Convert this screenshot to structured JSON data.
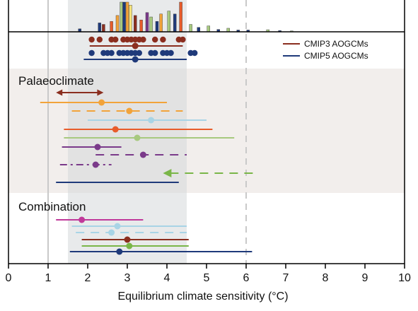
{
  "chart_data": {
    "type": "scatter",
    "xlabel": "Equilibrium climate sensitivity (°C)",
    "xlim": [
      0,
      10
    ],
    "xticks": [
      0,
      1,
      2,
      3,
      4,
      5,
      6,
      7,
      8,
      9,
      10
    ],
    "likely_range": [
      1.5,
      4.5
    ],
    "reference_lines": [
      1,
      6
    ],
    "legend": {
      "placement": "top-right",
      "entries": [
        {
          "label": "CMIP3 AOGCMs",
          "color": "#8b2e1f"
        },
        {
          "label": "CMIP5 AOGCMs",
          "color": "#1f3a7a"
        }
      ]
    },
    "sections": [
      {
        "label": "Palaeoclimate"
      },
      {
        "label": "Combination"
      }
    ],
    "histogram": {
      "note": "instrumental-estimate PDF bars (truncated at top)",
      "bins": [
        {
          "x": 1.8,
          "h": 0.1,
          "c": "#1f3a7a"
        },
        {
          "x": 2.3,
          "h": 0.3,
          "c": "#1f3a7a"
        },
        {
          "x": 2.4,
          "h": 0.25,
          "c": "#8b2e1f"
        },
        {
          "x": 2.6,
          "h": 0.35,
          "c": "#e85c2b"
        },
        {
          "x": 2.75,
          "h": 0.55,
          "c": "#f2a33a"
        },
        {
          "x": 2.85,
          "h": 1.0,
          "c": "#a7c97f"
        },
        {
          "x": 2.92,
          "h": 1.0,
          "c": "#1f3a7a"
        },
        {
          "x": 3.0,
          "h": 1.0,
          "c": "#f2a33a"
        },
        {
          "x": 3.08,
          "h": 0.9,
          "c": "#f5e27a"
        },
        {
          "x": 3.2,
          "h": 0.55,
          "c": "#8b2e1f"
        },
        {
          "x": 3.35,
          "h": 0.4,
          "c": "#e85c2b"
        },
        {
          "x": 3.5,
          "h": 0.65,
          "c": "#7a3a8a"
        },
        {
          "x": 3.6,
          "h": 0.5,
          "c": "#a7c97f"
        },
        {
          "x": 3.75,
          "h": 0.35,
          "c": "#1f3a7a"
        },
        {
          "x": 3.85,
          "h": 0.6,
          "c": "#f2a33a"
        },
        {
          "x": 4.05,
          "h": 0.7,
          "c": "#a7c97f"
        },
        {
          "x": 4.2,
          "h": 0.6,
          "c": "#1f3a7a"
        },
        {
          "x": 4.35,
          "h": 1.0,
          "c": "#e85c2b"
        },
        {
          "x": 4.6,
          "h": 0.25,
          "c": "#a7c97f"
        },
        {
          "x": 4.8,
          "h": 0.15,
          "c": "#1f3a7a"
        },
        {
          "x": 5.05,
          "h": 0.2,
          "c": "#a7c97f"
        },
        {
          "x": 5.3,
          "h": 0.08,
          "c": "#1f3a7a"
        },
        {
          "x": 5.55,
          "h": 0.12,
          "c": "#a7c97f"
        },
        {
          "x": 5.8,
          "h": 0.06,
          "c": "#1f3a7a"
        },
        {
          "x": 6.05,
          "h": 0.06,
          "c": "#1f3a7a"
        },
        {
          "x": 6.55,
          "h": 0.07,
          "c": "#a7c97f"
        },
        {
          "x": 6.85,
          "h": 0.04,
          "c": "#1f3a7a"
        },
        {
          "x": 7.15,
          "h": 0.03,
          "c": "#a7c97f"
        }
      ]
    },
    "model_dots": [
      {
        "name": "CMIP3 AOGCMs",
        "color": "#8b2e1f",
        "values": [
          2.1,
          2.3,
          2.6,
          2.7,
          2.9,
          3.0,
          3.1,
          3.2,
          3.3,
          3.4,
          3.7,
          3.9,
          4.3,
          4.4
        ]
      },
      {
        "name": "CMIP5 AOGCMs",
        "color": "#1f3a7a",
        "values": [
          2.1,
          2.4,
          2.5,
          2.6,
          2.8,
          2.9,
          3.0,
          3.1,
          3.2,
          3.3,
          3.6,
          3.7,
          3.9,
          4.0,
          4.1,
          4.6,
          4.7
        ]
      }
    ],
    "series": [
      {
        "group": "models",
        "color": "#8b2e1f",
        "style": "solid",
        "low": 2.05,
        "high": 4.4,
        "best": 3.2
      },
      {
        "group": "models",
        "color": "#1f3a7a",
        "style": "solid",
        "low": 1.9,
        "high": 4.5,
        "best": 3.2
      },
      {
        "group": "palaeoclimate",
        "color": "#8b2e1f",
        "style": "double-arrow",
        "low": 1.2,
        "high": 2.4
      },
      {
        "group": "palaeoclimate",
        "color": "#f2a33a",
        "style": "solid",
        "low": 0.8,
        "high": 4.0,
        "best": 2.35
      },
      {
        "group": "palaeoclimate",
        "color": "#f2a33a",
        "style": "dashed",
        "low": 1.6,
        "high": 4.4,
        "best": 3.05
      },
      {
        "group": "palaeoclimate",
        "color": "#a8d4e6",
        "style": "solid",
        "low": 2.0,
        "high": 5.0,
        "best": 3.6
      },
      {
        "group": "palaeoclimate",
        "color": "#e85c2b",
        "style": "solid",
        "low": 1.4,
        "high": 5.15,
        "best": 2.7
      },
      {
        "group": "palaeoclimate",
        "color": "#a7c97f",
        "style": "solid",
        "low": 1.4,
        "high": 5.7,
        "best": 3.25
      },
      {
        "group": "palaeoclimate",
        "color": "#7a3a8a",
        "style": "solid",
        "low": 1.35,
        "high": 2.85,
        "best": 2.25
      },
      {
        "group": "palaeoclimate",
        "color": "#7a3a8a",
        "style": "dashed",
        "low": 2.2,
        "high": 4.5,
        "best": 3.4
      },
      {
        "group": "palaeoclimate",
        "color": "#7a3a8a",
        "style": "dashdot",
        "low": 1.3,
        "high": 2.6,
        "best": 2.2
      },
      {
        "group": "palaeoclimate",
        "color": "#7ab648",
        "style": "dashed-arrow",
        "low": 3.9,
        "high": 6.25
      },
      {
        "group": "palaeoclimate",
        "color": "#1f3a7a",
        "style": "solid",
        "low": 1.2,
        "high": 4.3
      },
      {
        "group": "combination",
        "color": "#c0399a",
        "style": "solid",
        "low": 1.2,
        "high": 3.4,
        "best": 1.85
      },
      {
        "group": "combination",
        "color": "#a8d4e6",
        "style": "solid",
        "low": 1.6,
        "high": 4.5,
        "best": 2.75
      },
      {
        "group": "combination",
        "color": "#a8d4e6",
        "style": "dashed",
        "low": 1.7,
        "high": 4.5,
        "best": 2.6
      },
      {
        "group": "combination",
        "color": "#8b2e1f",
        "style": "solid",
        "low": 1.85,
        "high": 4.55,
        "best": 3.0
      },
      {
        "group": "combination",
        "color": "#7ab648",
        "style": "solid",
        "low": 1.85,
        "high": 4.55,
        "best": 3.05
      },
      {
        "group": "combination",
        "color": "#1f3a7a",
        "style": "solid",
        "low": 1.55,
        "high": 6.15,
        "best": 2.8
      }
    ]
  }
}
